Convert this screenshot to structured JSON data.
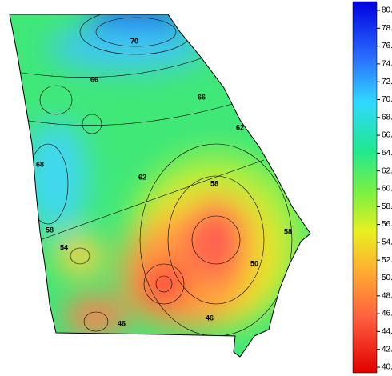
{
  "colorbar": {
    "min": 40,
    "max": 80,
    "ticks": [
      {
        "value": 80,
        "label": "80.0"
      },
      {
        "value": 78,
        "label": "78.0"
      },
      {
        "value": 76,
        "label": "76.0"
      },
      {
        "value": 74,
        "label": "74.0"
      },
      {
        "value": 72,
        "label": "72.0"
      },
      {
        "value": 70,
        "label": "70.0"
      },
      {
        "value": 68,
        "label": "68.0"
      },
      {
        "value": 66,
        "label": "66.0"
      },
      {
        "value": 64,
        "label": "64.0"
      },
      {
        "value": 62,
        "label": "62.0"
      },
      {
        "value": 60,
        "label": "60.0"
      },
      {
        "value": 58,
        "label": "58.0"
      },
      {
        "value": 56,
        "label": "56.0"
      },
      {
        "value": 54,
        "label": "54.0"
      },
      {
        "value": 52,
        "label": "52.0"
      },
      {
        "value": 50,
        "label": "50.0"
      },
      {
        "value": 48,
        "label": "48.0"
      },
      {
        "value": 46,
        "label": "46.0"
      },
      {
        "value": 44,
        "label": "44.0"
      },
      {
        "value": 42,
        "label": "42.0"
      },
      {
        "value": 40,
        "label": "40.0"
      }
    ]
  },
  "contour_labels": [
    "70",
    "66",
    "66",
    "62",
    "68",
    "62",
    "58",
    "58",
    "58",
    "54",
    "50",
    "46",
    "46"
  ]
}
